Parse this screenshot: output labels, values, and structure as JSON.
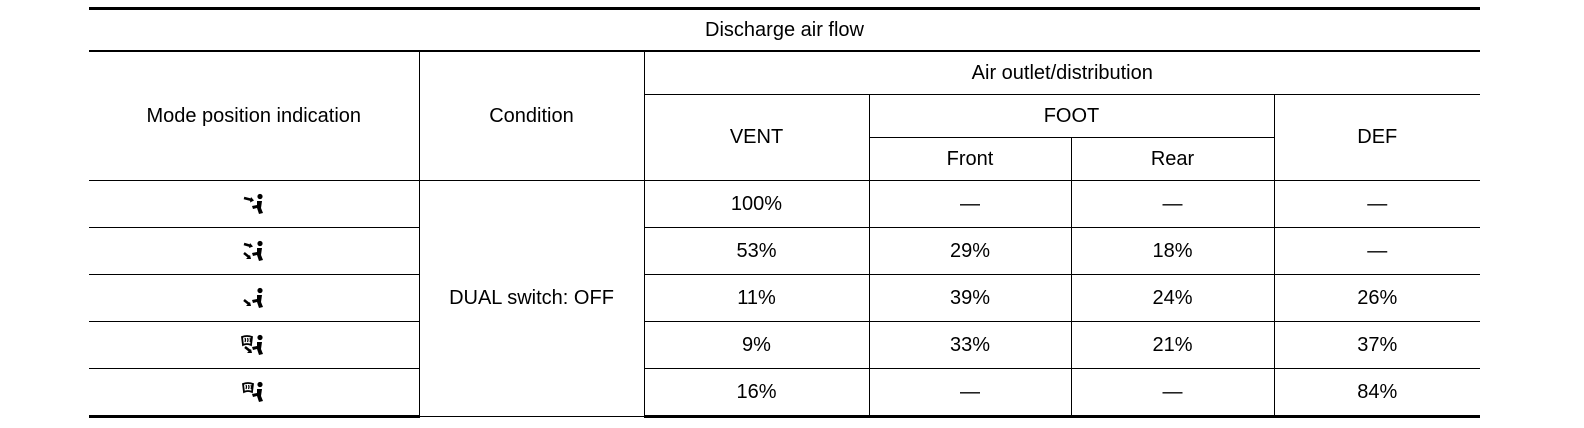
{
  "table": {
    "title": "Discharge air flow",
    "headers": {
      "mode": "Mode position indication",
      "condition": "Condition",
      "distribution": "Air outlet/distribution",
      "vent": "VENT",
      "foot": "FOOT",
      "front": "Front",
      "rear": "Rear",
      "def": "DEF"
    },
    "condition_value": "DUAL switch: OFF",
    "rows": [
      {
        "icon": "vent-mode-icon",
        "vent": "100%",
        "front": "—",
        "rear": "—",
        "def": "—"
      },
      {
        "icon": "bi-level-mode-icon",
        "vent": "53%",
        "front": "29%",
        "rear": "18%",
        "def": "—"
      },
      {
        "icon": "foot-mode-icon",
        "vent": "11%",
        "front": "39%",
        "rear": "24%",
        "def": "26%"
      },
      {
        "icon": "foot-defrost-mode-icon",
        "vent": "9%",
        "front": "33%",
        "rear": "21%",
        "def": "37%"
      },
      {
        "icon": "defrost-mode-icon",
        "vent": "16%",
        "front": "—",
        "rear": "—",
        "def": "84%"
      }
    ]
  }
}
